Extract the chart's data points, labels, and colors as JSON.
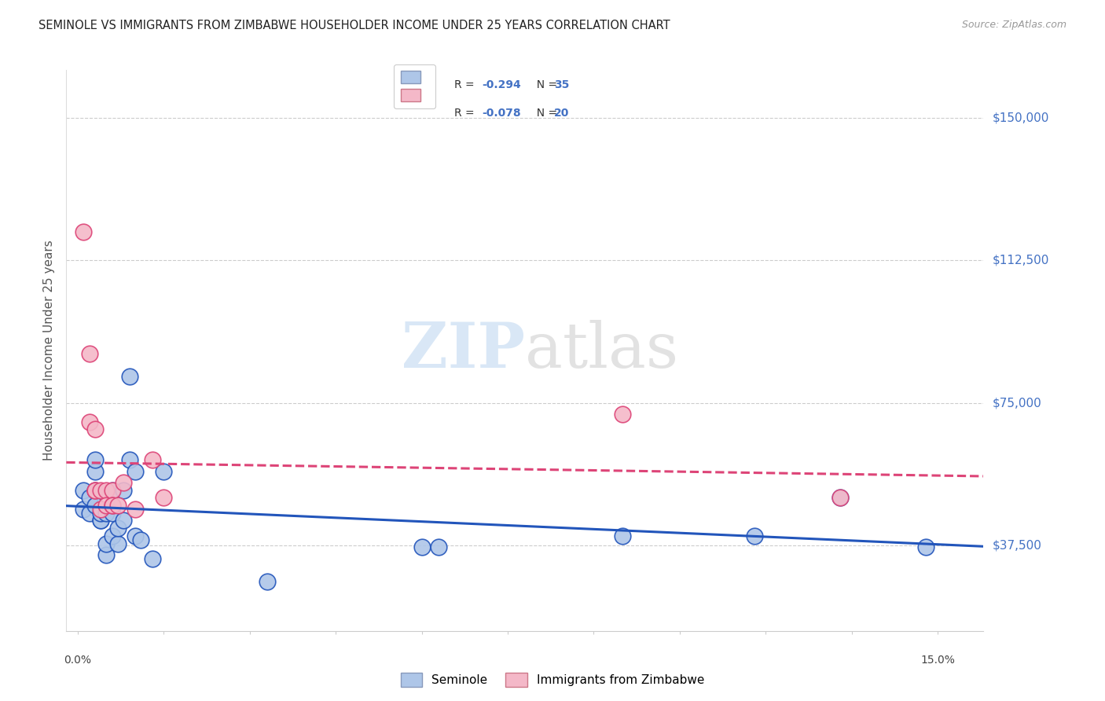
{
  "title": "SEMINOLE VS IMMIGRANTS FROM ZIMBABWE HOUSEHOLDER INCOME UNDER 25 YEARS CORRELATION CHART",
  "source": "Source: ZipAtlas.com",
  "ylabel": "Householder Income Under 25 years",
  "legend_label1": "Seminole",
  "legend_label2": "Immigrants from Zimbabwe",
  "r1": -0.294,
  "n1": 35,
  "r2": -0.078,
  "n2": 20,
  "ytick_labels": [
    "$37,500",
    "$75,000",
    "$112,500",
    "$150,000"
  ],
  "ytick_values": [
    37500,
    75000,
    112500,
    150000
  ],
  "ymin": 15000,
  "ymax": 162500,
  "xmin": -0.002,
  "xmax": 0.158,
  "color_blue": "#aec6e8",
  "color_pink": "#f4b8c8",
  "line_blue": "#2255bb",
  "line_pink": "#dd4477",
  "seminole_x": [
    0.001,
    0.001,
    0.002,
    0.002,
    0.003,
    0.003,
    0.003,
    0.003,
    0.004,
    0.004,
    0.004,
    0.005,
    0.005,
    0.005,
    0.006,
    0.006,
    0.006,
    0.007,
    0.007,
    0.008,
    0.008,
    0.009,
    0.009,
    0.01,
    0.01,
    0.011,
    0.013,
    0.015,
    0.033,
    0.06,
    0.063,
    0.095,
    0.118,
    0.133,
    0.148
  ],
  "seminole_y": [
    52000,
    47000,
    50000,
    46000,
    52000,
    48000,
    57000,
    60000,
    44000,
    44000,
    46000,
    35000,
    38000,
    46000,
    40000,
    46000,
    52000,
    38000,
    42000,
    44000,
    52000,
    60000,
    82000,
    57000,
    40000,
    39000,
    34000,
    57000,
    28000,
    37000,
    37000,
    40000,
    40000,
    50000,
    37000
  ],
  "zimbabwe_x": [
    0.001,
    0.002,
    0.002,
    0.003,
    0.003,
    0.003,
    0.004,
    0.004,
    0.005,
    0.005,
    0.006,
    0.006,
    0.006,
    0.007,
    0.008,
    0.01,
    0.013,
    0.015,
    0.095,
    0.133
  ],
  "zimbabwe_y": [
    120000,
    88000,
    70000,
    52000,
    68000,
    52000,
    52000,
    47000,
    52000,
    48000,
    52000,
    48000,
    48000,
    48000,
    54000,
    47000,
    60000,
    50000,
    72000,
    50000
  ],
  "watermark_zip": "ZIP",
  "watermark_atlas": "atlas",
  "background_color": "#ffffff"
}
